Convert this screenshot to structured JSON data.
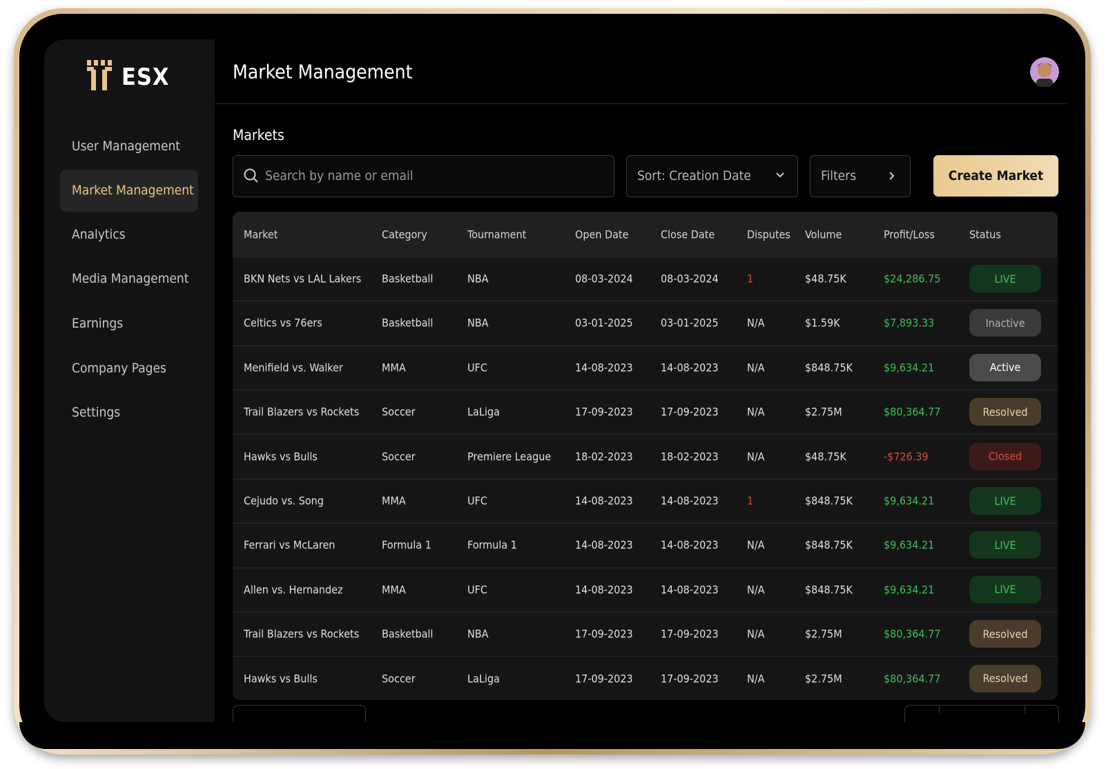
{
  "logo": "ESX",
  "nav": [
    "User Management",
    "Market Management",
    "Analytics",
    "Media Management",
    "Earnings",
    "Company Pages",
    "Settings"
  ],
  "header": {
    "title": "Market Management"
  },
  "section": {
    "title": "Markets",
    "search_placeholder": "Search by name or email",
    "sort": "Sort: Creation Date",
    "filters": "Filters",
    "create_button": "Create Market"
  },
  "table": {
    "columns": [
      "Market",
      "Category",
      "Tournament",
      "Open Date",
      "Close Date",
      "Disputes",
      "Volume",
      "Profit/Loss",
      "Status"
    ],
    "rows": [
      {
        "cells": [
          "BKN Nets vs LAL Lakers",
          "Basketball",
          "NBA",
          "08-03-2024",
          "08-03-2024",
          "1",
          "$48.75K",
          "$24,286.75",
          "LIVE"
        ],
        "disputes_color": "#e0483c",
        "profit_color": "#3fbf5a",
        "status_color": "#3fbf5a",
        "status_bg": "#14361c"
      },
      {
        "cells": [
          "Celtics vs 76ers",
          "Basketball",
          "NBA",
          "03-01-2025",
          "03-01-2025",
          "N/A",
          "$1.59K",
          "$7,893.33",
          "Inactive"
        ],
        "disputes_color": "#e0e0e0",
        "profit_color": "#3fbf5a",
        "status_color": "#b0b0b0",
        "status_bg": "#3a3a3a"
      },
      {
        "cells": [
          "Menifield vs. Walker",
          "MMA",
          "UFC",
          "14-08-2023",
          "14-08-2023",
          "N/A",
          "$848.75K",
          "$9,634.21",
          "Active"
        ],
        "disputes_color": "#e0e0e0",
        "profit_color": "#3fbf5a",
        "status_color": "#ffffff",
        "status_bg": "#4a4a4a"
      },
      {
        "cells": [
          "Trail Blazers vs Rockets",
          "Soccer",
          "LaLiga",
          "17-09-2023",
          "17-09-2023",
          "N/A",
          "$2.75M",
          "$80,364.77",
          "Resolved"
        ],
        "disputes_color": "#e0e0e0",
        "profit_color": "#3fbf5a",
        "status_color": "#e6d2b0",
        "status_bg": "#4a3c2c"
      },
      {
        "cells": [
          "Hawks vs Bulls",
          "Soccer",
          "Premiere League",
          "18-02-2023",
          "18-02-2023",
          "N/A",
          "$48.75K",
          "-$726.39",
          "Closed"
        ],
        "disputes_color": "#e0e0e0",
        "profit_color": "#e0483c",
        "status_color": "#e0483c",
        "status_bg": "#3d1a1a"
      },
      {
        "cells": [
          "Cejudo vs. Song",
          "MMA",
          "UFC",
          "14-08-2023",
          "14-08-2023",
          "1",
          "$848.75K",
          "$9,634.21",
          "LIVE"
        ],
        "disputes_color": "#e0483c",
        "profit_color": "#3fbf5a",
        "status_color": "#3fbf5a",
        "status_bg": "#14361c"
      },
      {
        "cells": [
          "Ferrari vs McLaren",
          "Formula 1",
          "Formula 1",
          "14-08-2023",
          "14-08-2023",
          "N/A",
          "$848.75K",
          "$9,634.21",
          "LIVE"
        ],
        "disputes_color": "#e0e0e0",
        "profit_color": "#3fbf5a",
        "status_color": "#3fbf5a",
        "status_bg": "#14361c"
      },
      {
        "cells": [
          "Allen vs. Hernandez",
          "MMA",
          "UFC",
          "14-08-2023",
          "14-08-2023",
          "N/A",
          "$848.75K",
          "$9,634.21",
          "LIVE"
        ],
        "disputes_color": "#e0e0e0",
        "profit_color": "#3fbf5a",
        "status_color": "#3fbf5a",
        "status_bg": "#14361c"
      },
      {
        "cells": [
          "Trail Blazers vs Rockets",
          "Basketball",
          "NBA",
          "17-09-2023",
          "17-09-2023",
          "N/A",
          "$2.75M",
          "$80,364.77",
          "Resolved"
        ],
        "disputes_color": "#e0e0e0",
        "profit_color": "#3fbf5a",
        "status_color": "#e6d2b0",
        "status_bg": "#4a3c2c"
      },
      {
        "cells": [
          "Hawks vs Bulls",
          "Soccer",
          "LaLiga",
          "17-09-2023",
          "17-09-2023",
          "N/A",
          "$2.75M",
          "$80,364.77",
          "Resolved"
        ],
        "disputes_color": "#e0e0e0",
        "profit_color": "#3fbf5a",
        "status_color": "#e6d2b0",
        "status_bg": "#4a3c2c"
      }
    ]
  }
}
